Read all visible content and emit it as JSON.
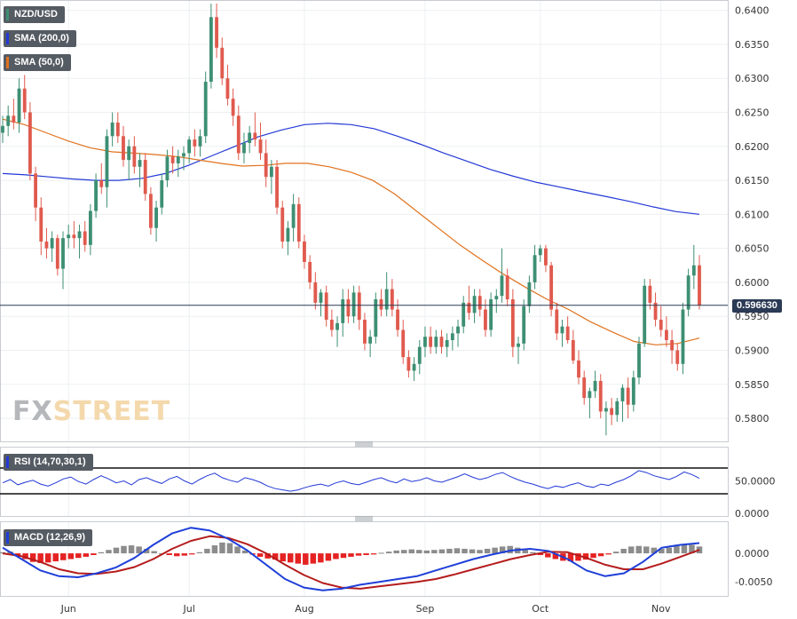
{
  "instrument": "NZD/USD",
  "indicators": {
    "sma200_label": "SMA (200,0)",
    "sma50_label": "SMA (50,0)",
    "rsi_label": "RSI (14,70,30,1)",
    "macd_label": "MACD (12,26,9)"
  },
  "logo": {
    "fx": "FX",
    "street": "STREET"
  },
  "colors": {
    "bull": "#3d8f73",
    "bear": "#e05a4e",
    "sma200": "#2339d6",
    "sma50": "#e0721e",
    "macd_line": "#1f3fd8",
    "signal_line": "#b51c1c",
    "hist_pos": "#8c8c8c",
    "hist_neg": "#e52222",
    "rsi_line": "#2339d6"
  },
  "price_tag": "0.596630",
  "x_ticks": [
    "Jun",
    "Jul",
    "Aug",
    "Sep",
    "Oct",
    "Nov"
  ],
  "price_axis": [
    "0.6400",
    "0.6350",
    "0.6300",
    "0.6250",
    "0.6200",
    "0.6150",
    "0.6100",
    "0.6050",
    "0.6000",
    "0.5950",
    "0.5900",
    "0.5850",
    "0.5800"
  ],
  "rsi_axis": [
    "50.0000",
    "0.0000"
  ],
  "macd_axis": [
    "0.0000",
    "-0.0050"
  ],
  "chart_data": [
    {
      "type": "candlestick",
      "title": "NZD/USD",
      "ylim": [
        0.577,
        0.641
      ],
      "current_price": 0.59663,
      "month_labels": [
        "Jun",
        "Jul",
        "Aug",
        "Sep",
        "Oct",
        "Nov"
      ],
      "month_index": [
        12,
        34,
        55,
        77,
        98,
        120
      ],
      "ohlc": [
        [
          0.622,
          0.6245,
          0.6205,
          0.623
        ],
        [
          0.623,
          0.626,
          0.6215,
          0.6245
        ],
        [
          0.6245,
          0.627,
          0.6225,
          0.6235
        ],
        [
          0.6235,
          0.63,
          0.622,
          0.6285
        ],
        [
          0.6285,
          0.6305,
          0.624,
          0.625
        ],
        [
          0.625,
          0.6265,
          0.615,
          0.616
        ],
        [
          0.616,
          0.617,
          0.609,
          0.611
        ],
        [
          0.611,
          0.6125,
          0.604,
          0.606
        ],
        [
          0.606,
          0.608,
          0.6035,
          0.605
        ],
        [
          0.605,
          0.6075,
          0.603,
          0.6065
        ],
        [
          0.6065,
          0.607,
          0.601,
          0.602
        ],
        [
          0.602,
          0.6075,
          0.599,
          0.6065
        ],
        [
          0.6065,
          0.6085,
          0.605,
          0.607
        ],
        [
          0.607,
          0.609,
          0.605,
          0.6065
        ],
        [
          0.6065,
          0.6085,
          0.6035,
          0.6075
        ],
        [
          0.6075,
          0.609,
          0.6045,
          0.6055
        ],
        [
          0.6055,
          0.6115,
          0.604,
          0.6105
        ],
        [
          0.6105,
          0.616,
          0.6095,
          0.615
        ],
        [
          0.615,
          0.6175,
          0.613,
          0.614
        ],
        [
          0.614,
          0.6225,
          0.611,
          0.6215
        ],
        [
          0.6215,
          0.625,
          0.62,
          0.6235
        ],
        [
          0.6235,
          0.625,
          0.6205,
          0.6215
        ],
        [
          0.6215,
          0.623,
          0.617,
          0.618
        ],
        [
          0.618,
          0.621,
          0.615,
          0.62
        ],
        [
          0.62,
          0.6215,
          0.616,
          0.617
        ],
        [
          0.617,
          0.619,
          0.614,
          0.618
        ],
        [
          0.618,
          0.619,
          0.612,
          0.613
        ],
        [
          0.613,
          0.614,
          0.607,
          0.608
        ],
        [
          0.608,
          0.612,
          0.606,
          0.611
        ],
        [
          0.611,
          0.616,
          0.61,
          0.615
        ],
        [
          0.615,
          0.6195,
          0.614,
          0.6185
        ],
        [
          0.6185,
          0.62,
          0.616,
          0.6175
        ],
        [
          0.6175,
          0.6195,
          0.6155,
          0.6185
        ],
        [
          0.6185,
          0.62,
          0.6165,
          0.619
        ],
        [
          0.619,
          0.6215,
          0.6175,
          0.621
        ],
        [
          0.621,
          0.6225,
          0.6185,
          0.62
        ],
        [
          0.62,
          0.6225,
          0.6185,
          0.6215
        ],
        [
          0.6215,
          0.631,
          0.6205,
          0.6295
        ],
        [
          0.6295,
          0.641,
          0.6285,
          0.639
        ],
        [
          0.639,
          0.641,
          0.633,
          0.6345
        ],
        [
          0.6345,
          0.636,
          0.629,
          0.63
        ],
        [
          0.63,
          0.632,
          0.626,
          0.627
        ],
        [
          0.627,
          0.6285,
          0.623,
          0.6245
        ],
        [
          0.6245,
          0.626,
          0.618,
          0.619
        ],
        [
          0.619,
          0.622,
          0.6175,
          0.6205
        ],
        [
          0.6205,
          0.623,
          0.619,
          0.622
        ],
        [
          0.622,
          0.625,
          0.62,
          0.621
        ],
        [
          0.621,
          0.6235,
          0.618,
          0.619
        ],
        [
          0.619,
          0.621,
          0.614,
          0.6155
        ],
        [
          0.6155,
          0.618,
          0.613,
          0.617
        ],
        [
          0.617,
          0.618,
          0.61,
          0.611
        ],
        [
          0.611,
          0.612,
          0.605,
          0.606
        ],
        [
          0.606,
          0.609,
          0.604,
          0.608
        ],
        [
          0.608,
          0.613,
          0.606,
          0.6115
        ],
        [
          0.6115,
          0.6125,
          0.605,
          0.606
        ],
        [
          0.606,
          0.607,
          0.602,
          0.603
        ],
        [
          0.603,
          0.604,
          0.599,
          0.6
        ],
        [
          0.6,
          0.6015,
          0.596,
          0.597
        ],
        [
          0.597,
          0.599,
          0.595,
          0.5985
        ],
        [
          0.5985,
          0.5995,
          0.5935,
          0.5945
        ],
        [
          0.5945,
          0.596,
          0.592,
          0.593
        ],
        [
          0.593,
          0.595,
          0.5905,
          0.594
        ],
        [
          0.594,
          0.599,
          0.592,
          0.5975
        ],
        [
          0.5975,
          0.599,
          0.594,
          0.595
        ],
        [
          0.595,
          0.5995,
          0.594,
          0.5985
        ],
        [
          0.5985,
          0.5995,
          0.593,
          0.5945
        ],
        [
          0.5945,
          0.5955,
          0.59,
          0.591
        ],
        [
          0.591,
          0.593,
          0.589,
          0.592
        ],
        [
          0.592,
          0.5985,
          0.591,
          0.5975
        ],
        [
          0.5975,
          0.599,
          0.595,
          0.596
        ],
        [
          0.596,
          0.6015,
          0.595,
          0.599
        ],
        [
          0.599,
          0.6005,
          0.595,
          0.596
        ],
        [
          0.596,
          0.5975,
          0.592,
          0.593
        ],
        [
          0.593,
          0.5945,
          0.588,
          0.589
        ],
        [
          0.589,
          0.59,
          0.586,
          0.587
        ],
        [
          0.587,
          0.589,
          0.5855,
          0.588
        ],
        [
          0.588,
          0.5915,
          0.5865,
          0.5905
        ],
        [
          0.5905,
          0.5935,
          0.589,
          0.592
        ],
        [
          0.592,
          0.5935,
          0.5895,
          0.5905
        ],
        [
          0.5905,
          0.593,
          0.5895,
          0.592
        ],
        [
          0.592,
          0.593,
          0.5895,
          0.5905
        ],
        [
          0.5905,
          0.5925,
          0.589,
          0.5915
        ],
        [
          0.5915,
          0.5935,
          0.59,
          0.5925
        ],
        [
          0.5925,
          0.5945,
          0.5905,
          0.5935
        ],
        [
          0.5935,
          0.598,
          0.5925,
          0.597
        ],
        [
          0.597,
          0.5995,
          0.5945,
          0.5955
        ],
        [
          0.5955,
          0.599,
          0.594,
          0.598
        ],
        [
          0.598,
          0.599,
          0.595,
          0.596
        ],
        [
          0.596,
          0.5975,
          0.592,
          0.593
        ],
        [
          0.593,
          0.5985,
          0.592,
          0.5975
        ],
        [
          0.5975,
          0.599,
          0.5955,
          0.598
        ],
        [
          0.598,
          0.605,
          0.597,
          0.601
        ],
        [
          0.601,
          0.602,
          0.5965,
          0.5975
        ],
        [
          0.5975,
          0.599,
          0.589,
          0.5905
        ],
        [
          0.5905,
          0.592,
          0.588,
          0.591
        ],
        [
          0.591,
          0.5975,
          0.59,
          0.5965
        ],
        [
          0.5965,
          0.601,
          0.5955,
          0.6
        ],
        [
          0.6,
          0.6055,
          0.599,
          0.604
        ],
        [
          0.604,
          0.6055,
          0.603,
          0.605
        ],
        [
          0.605,
          0.6055,
          0.6015,
          0.6025
        ],
        [
          0.6025,
          0.603,
          0.595,
          0.596
        ],
        [
          0.596,
          0.597,
          0.5915,
          0.5925
        ],
        [
          0.5925,
          0.5945,
          0.5905,
          0.5935
        ],
        [
          0.5935,
          0.595,
          0.591,
          0.5915
        ],
        [
          0.5915,
          0.593,
          0.588,
          0.5885
        ],
        [
          0.5885,
          0.59,
          0.585,
          0.586
        ],
        [
          0.586,
          0.587,
          0.582,
          0.583
        ],
        [
          0.583,
          0.5845,
          0.58,
          0.584
        ],
        [
          0.584,
          0.587,
          0.583,
          0.5855
        ],
        [
          0.5855,
          0.5865,
          0.58,
          0.581
        ],
        [
          0.581,
          0.5825,
          0.5775,
          0.5815
        ],
        [
          0.5815,
          0.583,
          0.579,
          0.5805
        ],
        [
          0.5805,
          0.583,
          0.5795,
          0.5825
        ],
        [
          0.5825,
          0.585,
          0.5795,
          0.5845
        ],
        [
          0.5845,
          0.586,
          0.58,
          0.582
        ],
        [
          0.582,
          0.587,
          0.581,
          0.586
        ],
        [
          0.586,
          0.592,
          0.585,
          0.591
        ],
        [
          0.591,
          0.6005,
          0.5905,
          0.5995
        ],
        [
          0.5995,
          0.6005,
          0.596,
          0.597
        ],
        [
          0.597,
          0.5985,
          0.5935,
          0.5945
        ],
        [
          0.5945,
          0.5965,
          0.592,
          0.593
        ],
        [
          0.593,
          0.595,
          0.5905,
          0.5915
        ],
        [
          0.5915,
          0.593,
          0.588,
          0.59
        ],
        [
          0.59,
          0.591,
          0.587,
          0.588
        ],
        [
          0.588,
          0.597,
          0.5865,
          0.596
        ],
        [
          0.596,
          0.602,
          0.595,
          0.601
        ],
        [
          0.601,
          0.6055,
          0.599,
          0.6025
        ],
        [
          0.6025,
          0.604,
          0.596,
          0.5966
        ]
      ],
      "sma200": [
        0.616,
        0.6158,
        0.6155,
        0.6152,
        0.615,
        0.615,
        0.6153,
        0.616,
        0.6172,
        0.6186,
        0.62,
        0.6214,
        0.6224,
        0.6232,
        0.6234,
        0.6232,
        0.6226,
        0.6215,
        0.6203,
        0.619,
        0.6178,
        0.6166,
        0.6156,
        0.6147,
        0.614,
        0.6133,
        0.6126,
        0.6119,
        0.6111,
        0.6104,
        0.61
      ],
      "sma50": [
        0.624,
        0.6232,
        0.622,
        0.6208,
        0.6198,
        0.6192,
        0.619,
        0.6188,
        0.6185,
        0.618,
        0.6175,
        0.6171,
        0.6172,
        0.6175,
        0.6175,
        0.617,
        0.6162,
        0.615,
        0.613,
        0.6105,
        0.608,
        0.6055,
        0.6033,
        0.6012,
        0.5993,
        0.5975,
        0.596,
        0.5942,
        0.5927,
        0.5913,
        0.5908,
        0.591,
        0.5918
      ],
      "rsi": [
        47,
        52,
        44,
        48,
        51,
        45,
        42,
        47,
        53,
        56,
        49,
        45,
        52,
        58,
        53,
        47,
        50,
        44,
        52,
        55,
        50,
        46,
        53,
        57,
        50,
        45,
        52,
        58,
        62,
        55,
        51,
        48,
        55,
        52,
        48,
        42,
        38,
        36,
        34,
        36,
        40,
        43,
        45,
        42,
        47,
        50,
        46,
        44,
        48,
        52,
        55,
        50,
        47,
        53,
        49,
        51,
        55,
        50,
        48,
        52,
        56,
        61,
        56,
        52,
        55,
        60,
        63,
        57,
        52,
        48,
        45,
        41,
        38,
        42,
        40,
        44,
        47,
        42,
        40,
        45,
        43,
        48,
        52,
        58,
        66,
        63,
        58,
        55,
        52,
        57,
        64,
        60,
        54
      ],
      "macd": {
        "ylim": [
          -0.007,
          0.005
        ],
        "histogram": [
          0.0002,
          0.0003,
          -0.0005,
          -0.001,
          -0.0015,
          -0.0017,
          -0.0016,
          -0.0014,
          -0.0012,
          -0.001,
          -0.0008,
          -0.0006,
          -0.0003,
          0.0002,
          0.0006,
          0.001,
          0.0013,
          0.0014,
          0.0012,
          0.0008,
          0.0004,
          0.0,
          -0.0003,
          -0.0005,
          -0.0004,
          -0.0002,
          0.0002,
          0.0008,
          0.0014,
          0.0019,
          0.0018,
          0.0012,
          0.0005,
          -0.0002,
          -0.0006,
          -0.0009,
          -0.0011,
          -0.0014,
          -0.0016,
          -0.0018,
          -0.002,
          -0.0018,
          -0.0016,
          -0.0013,
          -0.001,
          -0.0008,
          -0.0006,
          -0.0004,
          -0.0003,
          -0.0002,
          0.0001,
          0.0003,
          0.0005,
          0.0006,
          0.0007,
          0.0006,
          0.0005,
          0.0006,
          0.0007,
          0.0008,
          0.0009,
          0.0008,
          0.0007,
          0.0006,
          0.0008,
          0.001,
          0.0012,
          0.0013,
          0.001,
          0.0006,
          0.0002,
          -0.0003,
          -0.0007,
          -0.001,
          -0.0013,
          -0.0014,
          -0.0013,
          -0.0011,
          -0.0008,
          -0.0005,
          -0.0002,
          0.0003,
          0.0008,
          0.0012,
          0.0013,
          0.0012,
          0.001,
          0.0008,
          0.001,
          0.0013,
          0.0016,
          0.0015,
          0.0012
        ],
        "macd_line": [
          0.001,
          -0.001,
          -0.003,
          -0.004,
          -0.0042,
          -0.0035,
          -0.0025,
          -0.0008,
          0.0015,
          0.0035,
          0.0045,
          0.004,
          0.0025,
          0.0005,
          -0.002,
          -0.0045,
          -0.006,
          -0.0065,
          -0.0062,
          -0.0055,
          -0.005,
          -0.0045,
          -0.004,
          -0.003,
          -0.002,
          -0.001,
          -0.0002,
          0.0005,
          0.0008,
          0.0004,
          -0.001,
          -0.003,
          -0.004,
          -0.0035,
          -0.0015,
          0.001,
          0.0015,
          0.0018
        ],
        "signal_line": [
          0.0,
          -0.0005,
          -0.0015,
          -0.0028,
          -0.0035,
          -0.0036,
          -0.0032,
          -0.0024,
          -0.001,
          0.0008,
          0.0022,
          0.003,
          0.0027,
          0.0016,
          0.0,
          -0.002,
          -0.0038,
          -0.0052,
          -0.006,
          -0.0062,
          -0.0058,
          -0.0054,
          -0.005,
          -0.0045,
          -0.0037,
          -0.0028,
          -0.0019,
          -0.001,
          -0.0003,
          0.0003,
          0.0002,
          -0.0008,
          -0.002,
          -0.0028,
          -0.0028,
          -0.0018,
          -0.0006,
          0.0006
        ]
      }
    }
  ]
}
